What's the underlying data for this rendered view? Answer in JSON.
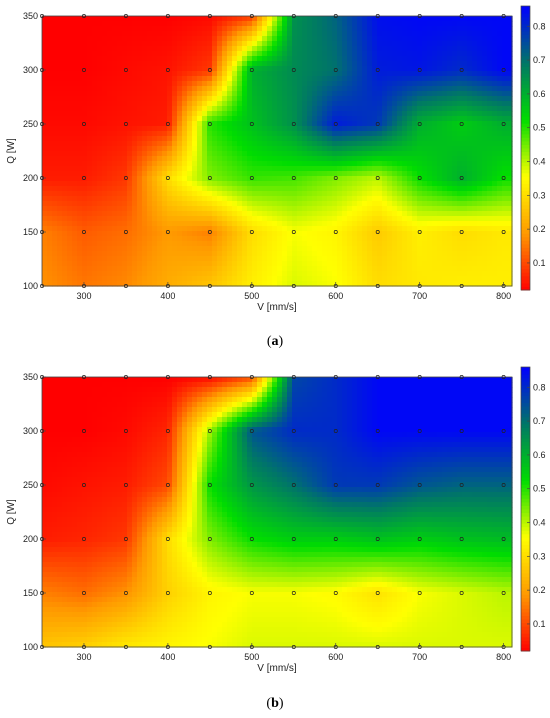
{
  "chart_data": [
    {
      "type": "heatmap",
      "caption": "(a)",
      "xlabel": "V [mm/s]",
      "ylabel": "Q [W]",
      "x": [
        250,
        300,
        350,
        400,
        450,
        500,
        550,
        600,
        650,
        700,
        750,
        800
      ],
      "y": [
        100,
        150,
        200,
        250,
        300,
        350
      ],
      "xticks": [
        300,
        400,
        500,
        600,
        700,
        800
      ],
      "yticks": [
        100,
        150,
        200,
        250,
        300,
        350
      ],
      "xlim": [
        250,
        810
      ],
      "ylim": [
        100,
        350
      ],
      "colorbar": {
        "ticks": [
          0.1,
          0.2,
          0.3,
          0.4,
          0.5,
          0.6,
          0.7,
          0.8
        ],
        "range": [
          0.02,
          0.86
        ],
        "colormap": [
          "#ff0000",
          "#ff9900",
          "#ffff00",
          "#00dd00",
          "#007766",
          "#0000ff"
        ]
      },
      "z": [
        [
          0.18,
          0.15,
          0.17,
          0.22,
          0.26,
          0.33,
          0.38,
          0.36,
          0.3,
          0.32,
          0.33,
          0.33
        ],
        [
          0.16,
          0.12,
          0.14,
          0.19,
          0.16,
          0.3,
          0.36,
          0.34,
          0.27,
          0.33,
          0.3,
          0.32
        ],
        [
          0.05,
          0.05,
          0.08,
          0.3,
          0.44,
          0.49,
          0.48,
          0.44,
          0.4,
          0.52,
          0.6,
          0.52
        ],
        [
          0.03,
          0.03,
          0.04,
          0.05,
          0.5,
          0.57,
          0.65,
          0.82,
          0.78,
          0.6,
          0.55,
          0.6
        ],
        [
          0.02,
          0.02,
          0.03,
          0.04,
          0.08,
          0.6,
          0.66,
          0.7,
          0.82,
          0.83,
          0.8,
          0.85
        ],
        [
          0.02,
          0.02,
          0.02,
          0.02,
          0.03,
          0.08,
          0.65,
          0.72,
          0.84,
          0.85,
          0.85,
          0.85
        ]
      ]
    },
    {
      "type": "heatmap",
      "caption": "(b)",
      "xlabel": "V [mm/s]",
      "ylabel": "Q [W]",
      "x": [
        250,
        300,
        350,
        400,
        450,
        500,
        550,
        600,
        650,
        700,
        750,
        800
      ],
      "y": [
        100,
        150,
        200,
        250,
        300,
        350
      ],
      "xticks": [
        300,
        400,
        500,
        600,
        700,
        800
      ],
      "yticks": [
        100,
        150,
        200,
        250,
        300,
        350
      ],
      "xlim": [
        250,
        810
      ],
      "ylim": [
        100,
        350
      ],
      "colorbar": {
        "ticks": [
          0.1,
          0.2,
          0.3,
          0.4,
          0.5,
          0.6,
          0.7,
          0.8
        ],
        "range": [
          0.02,
          0.86
        ],
        "colormap": [
          "#ff0000",
          "#ff9900",
          "#ffff00",
          "#00dd00",
          "#007766",
          "#0000ff"
        ]
      },
      "z": [
        [
          0.26,
          0.28,
          0.32,
          0.34,
          0.36,
          0.38,
          0.38,
          0.38,
          0.38,
          0.38,
          0.38,
          0.38
        ],
        [
          0.16,
          0.14,
          0.18,
          0.28,
          0.34,
          0.36,
          0.36,
          0.35,
          0.31,
          0.36,
          0.38,
          0.4
        ],
        [
          0.05,
          0.06,
          0.08,
          0.3,
          0.44,
          0.52,
          0.55,
          0.55,
          0.57,
          0.55,
          0.57,
          0.58
        ],
        [
          0.03,
          0.04,
          0.05,
          0.1,
          0.52,
          0.64,
          0.7,
          0.78,
          0.78,
          0.74,
          0.72,
          0.72
        ],
        [
          0.02,
          0.02,
          0.03,
          0.06,
          0.42,
          0.74,
          0.8,
          0.8,
          0.85,
          0.85,
          0.85,
          0.85
        ],
        [
          0.02,
          0.02,
          0.02,
          0.02,
          0.03,
          0.1,
          0.76,
          0.8,
          0.85,
          0.85,
          0.85,
          0.85
        ]
      ]
    }
  ]
}
